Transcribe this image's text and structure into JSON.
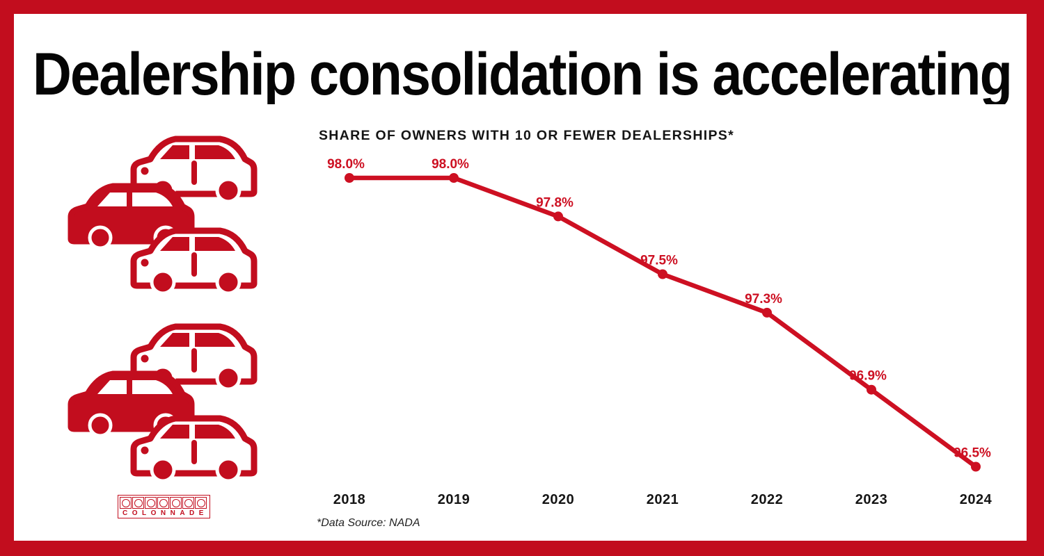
{
  "colors": {
    "brand_red": "#C20D1E",
    "chart_red": "#CD1022",
    "ink": "#050505"
  },
  "title": "Dealership consolidation is accelerating",
  "chart": {
    "heading": "SHARE OF OWNERS WITH 10 OR FEWER DEALERSHIPS*",
    "source_note": "*Data Source: NADA"
  },
  "chart_data": {
    "type": "line",
    "title": "SHARE OF OWNERS WITH 10 OR FEWER DEALERSHIPS*",
    "categories": [
      "2018",
      "2019",
      "2020",
      "2021",
      "2022",
      "2023",
      "2024"
    ],
    "values": [
      98.0,
      98.0,
      97.8,
      97.5,
      97.3,
      96.9,
      96.5
    ],
    "data_labels": [
      "98.0%",
      "98.0%",
      "97.8%",
      "97.5%",
      "97.3%",
      "96.9%",
      "96.5%"
    ],
    "xlabel": "",
    "ylabel": "",
    "ylim": [
      96.3,
      98.2
    ],
    "grid": false,
    "legend": "none",
    "line_color": "#CD1022",
    "marker": "circle",
    "source": "*Data Source: NADA"
  },
  "logo": {
    "name": "Colonnade",
    "text": "COLONNADE",
    "squares": 7
  },
  "graphics": {
    "car_icon_color": "#C20D1E",
    "car_clusters": 2,
    "cars_per_cluster": 3
  }
}
